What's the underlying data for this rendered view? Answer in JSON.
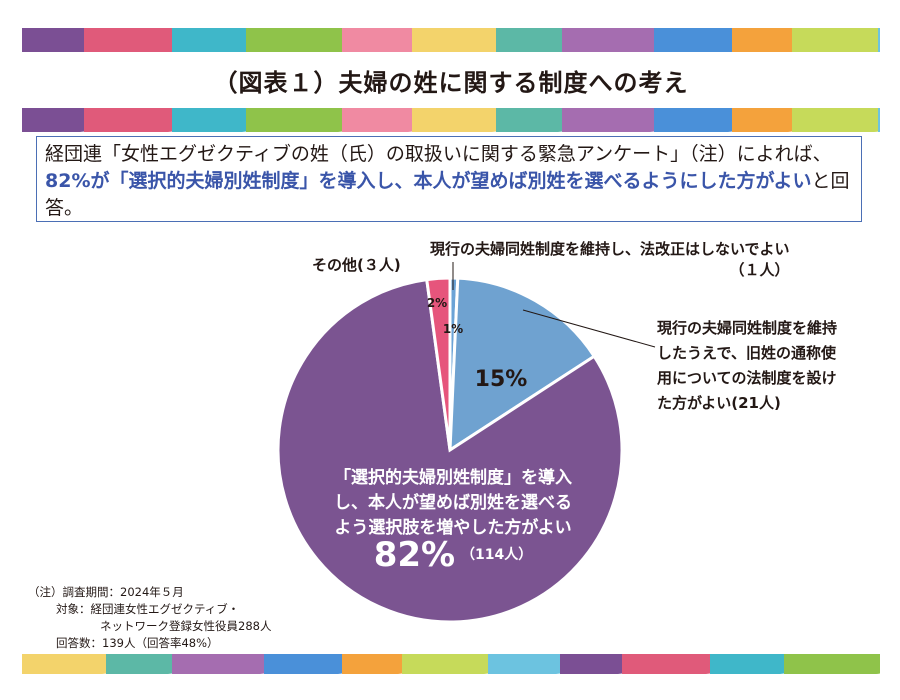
{
  "title": "（図表１）夫婦の姓に関する制度への考え",
  "summary": {
    "prefix": "経団連「女性エグゼクティブの姓（氏）の取扱いに関する緊急アンケート」（注）によれば、",
    "highlight": "82%が「選択的夫婦別姓制度」を導入し、本人が望めば別姓を選べるようにした方がよい",
    "suffix": "と回答。"
  },
  "labels": {
    "current_no_change_line1": "現行の夫婦同姓制度を維持し、法改正はしないでよい",
    "current_no_change_line2": "（１人）",
    "other": "その他(３人)",
    "maiden_name_lines": [
      "現行の夫婦同姓制度を維持",
      "したうえで、旧姓の通称使",
      "用についての法制度を設け",
      "た方がよい(21人)"
    ],
    "separate_lines": [
      "「選択的夫婦別姓制度」を導入",
      "し、本人が望めば別姓を選べる",
      "よう選択肢を増やした方がよい"
    ],
    "separate_pct": "82%",
    "separate_count": "（114人）"
  },
  "footnote": {
    "line1": "（注）調査期間：2024年５月",
    "line2": "対象：経団連女性エグゼクティブ・",
    "line3": "ネットワーク登録女性役員288人",
    "line4": "回答数：139人（回答率48%）"
  },
  "colors": {
    "accent_text": "#3a55a9",
    "frame": "#4b6fb5",
    "band": [
      "#7b4f94",
      "#e05a7a",
      "#3fb7c9",
      "#8fc34a",
      "#f08aa2",
      "#f3d36b",
      "#5cb8a6",
      "#a56db0",
      "#4a90d9",
      "#f4a23c",
      "#c6da5a",
      "#6cc3e0"
    ]
  },
  "chart_data": {
    "type": "pie",
    "title": "（図表１）夫婦の姓に関する制度への考え",
    "start_angle_deg": 0,
    "direction": "clockwise",
    "slices": [
      {
        "label": "現行の夫婦同姓制度を維持し、法改正はしないでよい",
        "value": 1,
        "percent_label": "1%",
        "color": "#6ba3d6"
      },
      {
        "label": "現行の夫婦同姓制度を維持したうえで、旧姓の通称使用についての法制度を設けた方がよい",
        "value": 21,
        "percent_label": "15%",
        "color": "#6fa2d0"
      },
      {
        "label": "「選択的夫婦別姓制度」を導入し、本人が望めば別姓を選べるよう選択肢を増やした方がよい",
        "value": 114,
        "percent_label": "82%",
        "color": "#7b5491"
      },
      {
        "label": "その他",
        "value": 3,
        "percent_label": "2%",
        "color": "#e6557c"
      }
    ]
  }
}
